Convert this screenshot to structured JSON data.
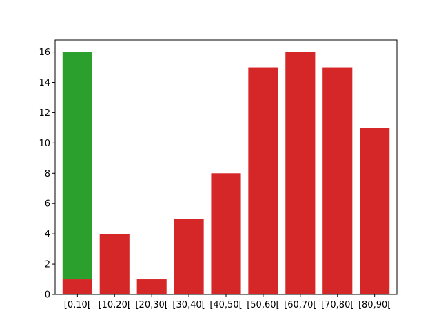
{
  "chart_data": {
    "type": "bar",
    "stacked": true,
    "categories": [
      "[0,10[",
      "[10,20[",
      "[20,30[",
      "[30,40[",
      "[40,50[",
      "[50,60[",
      "[60,70[",
      "[70,80[",
      "[80,90["
    ],
    "series": [
      {
        "color": "#d62728",
        "values": [
          1,
          4,
          1,
          5,
          8,
          15,
          16,
          15,
          11
        ]
      },
      {
        "color": "#2ca02c",
        "values": [
          15,
          0,
          0,
          0,
          0,
          0,
          0,
          0,
          0
        ]
      }
    ],
    "ylim": [
      0,
      16.8
    ],
    "yticks": [
      0,
      2,
      4,
      6,
      8,
      10,
      12,
      14,
      16
    ],
    "title": "",
    "xlabel": "",
    "ylabel": "",
    "grid": false,
    "legend": false
  }
}
